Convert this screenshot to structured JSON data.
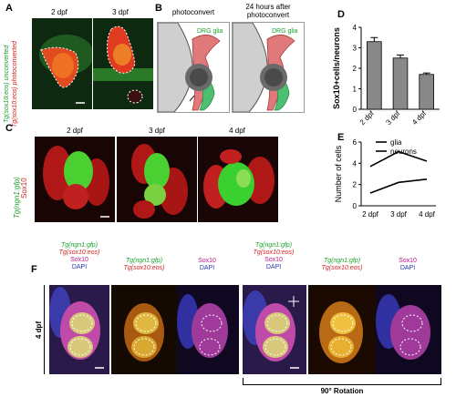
{
  "panels": {
    "A": {
      "letter": "A",
      "col_labels": [
        "2 dpf",
        "3 dpf"
      ],
      "ylabel_green": "Tg(sox10:eos) unconverted",
      "ylabel_red": "Tg(sox10:eos) photoconverted"
    },
    "B": {
      "letter": "B",
      "col_labels": [
        "photoconvert",
        "24 hours after photoconvert"
      ],
      "glia_label": "DRG glia"
    },
    "C": {
      "letter": "C",
      "col_labels": [
        "2 dpf",
        "3 dpf",
        "4 dpf"
      ],
      "ylabel_green": "Tg(ngn1:gfp)",
      "ylabel_red": "Sox10"
    },
    "D": {
      "letter": "D"
    },
    "E": {
      "letter": "E"
    },
    "F": {
      "letter": "F",
      "row_label": "4 dpf",
      "rotation_label": "90° Rotation",
      "col_headers": [
        {
          "l1": "Tg(ngn1:gfp)",
          "l2": "Tg(sox10:eos)",
          "l3": "Sox10",
          "l4": "DAPI"
        },
        {
          "l1": "Tg(ngn1:gfp)",
          "l2": "Tg(sox10:eos)"
        },
        {
          "l1": "Sox10",
          "l2": "DAPI"
        },
        {
          "l1": "Tg(ngn1:gfp)",
          "l2": "Tg(sox10:eos)",
          "l3": "Sox10",
          "l4": "DAPI"
        },
        {
          "l1": "Tg(ngn1:gfp)",
          "l2": "Tg(sox10:eos)"
        },
        {
          "l1": "Sox10",
          "l2": "DAPI"
        }
      ]
    }
  },
  "chart_data": [
    {
      "panel": "D",
      "type": "bar",
      "categories": [
        "2 dpf",
        "3 dpf",
        "4 dpf"
      ],
      "values": [
        3.3,
        2.5,
        1.7
      ],
      "errors": [
        0.2,
        0.15,
        0.07
      ],
      "ylabel": "Sox10+cells/neurons",
      "ylim": [
        0,
        4
      ],
      "yticks": [
        0,
        1,
        2,
        3,
        4
      ],
      "bar_color": "#888888"
    },
    {
      "panel": "E",
      "type": "line",
      "categories": [
        "2 dpf",
        "3 dpf",
        "4 dpf"
      ],
      "series": [
        {
          "name": "glia",
          "values": [
            3.7,
            5.1,
            4.2
          ]
        },
        {
          "name": "neurons",
          "values": [
            1.2,
            2.2,
            2.5
          ]
        }
      ],
      "ylabel": "Number of cells",
      "ylim": [
        0,
        6
      ],
      "yticks": [
        0,
        2,
        4,
        6
      ]
    }
  ]
}
